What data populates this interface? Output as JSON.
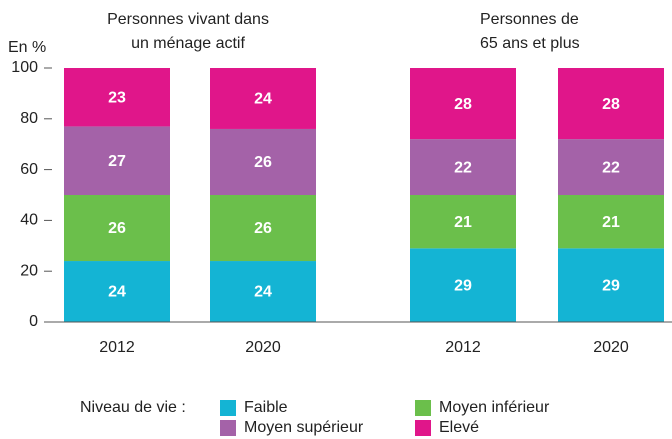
{
  "chart_data": {
    "type": "stacked_bar",
    "y_label": "En %",
    "group_labels": [
      [
        "Personnes vivant dans",
        "un ménage actif"
      ],
      [
        "Personnes de",
        "65 ans et plus"
      ]
    ],
    "categories": [
      "2012",
      "2020",
      "2012",
      "2020"
    ],
    "series": [
      {
        "name": "Faible",
        "color": "#14b4d4",
        "values": [
          24,
          24,
          29,
          29
        ]
      },
      {
        "name": "Moyen inférieur",
        "color": "#6bbf4b",
        "values": [
          26,
          26,
          21,
          21
        ]
      },
      {
        "name": "Moyen supérieur",
        "color": "#a462a8",
        "values": [
          27,
          26,
          22,
          22
        ]
      },
      {
        "name": "Elevé",
        "color": "#e0168a",
        "values": [
          23,
          24,
          28,
          28
        ]
      }
    ],
    "ylim": [
      0,
      100
    ],
    "yticks": [
      0,
      20,
      40,
      60,
      80,
      100
    ],
    "legend_title": "Niveau de vie :"
  }
}
